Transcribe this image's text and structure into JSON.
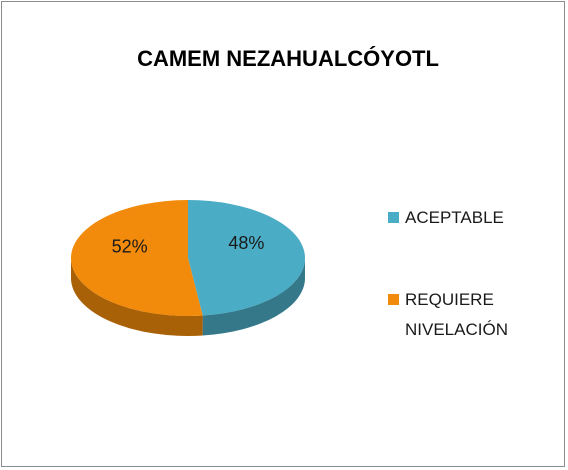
{
  "chart_data": {
    "type": "pie",
    "title": "CAMEM NEZAHUALCÓYOTL",
    "categories": [
      "ACEPTABLE",
      "REQUIERE NIVELACIÓN"
    ],
    "values": [
      48,
      52
    ],
    "value_labels": [
      "48%",
      "52%"
    ],
    "colors": [
      "#4bacc6",
      "#f28b0c"
    ]
  }
}
